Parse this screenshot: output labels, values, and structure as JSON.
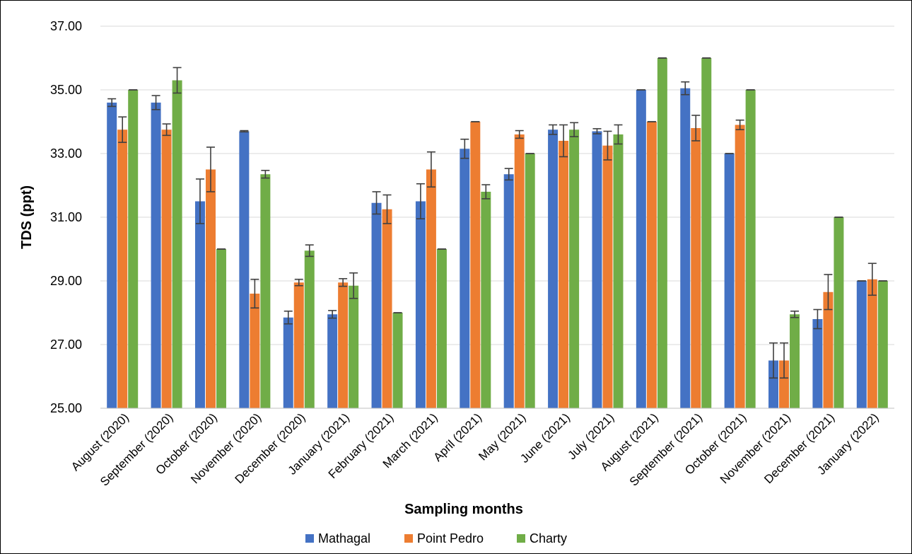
{
  "chart_data": {
    "type": "bar",
    "title": "",
    "xlabel": "Sampling months",
    "ylabel": "TDS (ppt)",
    "ylim": [
      25,
      37
    ],
    "yticks": [
      "25.00",
      "27.00",
      "29.00",
      "31.00",
      "33.00",
      "35.00",
      "37.00"
    ],
    "grid": true,
    "legend_position": "bottom",
    "error_bars": true,
    "categories": [
      "August (2020)",
      "September (2020)",
      "October (2020)",
      "November (2020)",
      "December (2020)",
      "January (2021)",
      "February (2021)",
      "March (2021)",
      "April (2021)",
      "May (2021)",
      "June (2021)",
      "July (2021)",
      "August (2021)",
      "September (2021)",
      "October (2021)",
      "November (2021)",
      "December (2021)",
      "January (2022)"
    ],
    "series": [
      {
        "name": "Mathagal",
        "color": "#4472c4",
        "values": [
          34.6,
          34.6,
          31.5,
          33.7,
          27.85,
          27.95,
          31.45,
          31.5,
          33.15,
          32.35,
          33.75,
          33.7,
          35.0,
          35.05,
          33.0,
          26.5,
          27.8,
          29.0
        ],
        "errors": [
          0.12,
          0.22,
          0.7,
          0.02,
          0.2,
          0.12,
          0.35,
          0.55,
          0.3,
          0.18,
          0.15,
          0.08,
          0.0,
          0.2,
          0.0,
          0.55,
          0.3,
          0.0
        ]
      },
      {
        "name": "Point Pedro",
        "color": "#ed7d31",
        "values": [
          33.75,
          33.75,
          32.5,
          28.6,
          28.95,
          28.95,
          31.25,
          32.5,
          34.0,
          33.6,
          33.4,
          33.25,
          34.0,
          33.8,
          33.9,
          26.5,
          28.65,
          29.05
        ],
        "errors": [
          0.4,
          0.18,
          0.7,
          0.45,
          0.1,
          0.12,
          0.45,
          0.55,
          0.0,
          0.12,
          0.5,
          0.45,
          0.0,
          0.4,
          0.15,
          0.55,
          0.55,
          0.5
        ]
      },
      {
        "name": "Charty",
        "color": "#70ad47",
        "values": [
          35.0,
          35.3,
          30.0,
          32.35,
          29.95,
          28.85,
          28.0,
          30.0,
          31.8,
          33.0,
          33.75,
          33.6,
          36.0,
          36.0,
          35.0,
          27.95,
          31.0,
          29.0
        ],
        "errors": [
          0.0,
          0.4,
          0.0,
          0.12,
          0.18,
          0.4,
          0.0,
          0.0,
          0.22,
          0.0,
          0.22,
          0.3,
          0.0,
          0.0,
          0.0,
          0.1,
          0.0,
          0.0
        ]
      }
    ]
  }
}
